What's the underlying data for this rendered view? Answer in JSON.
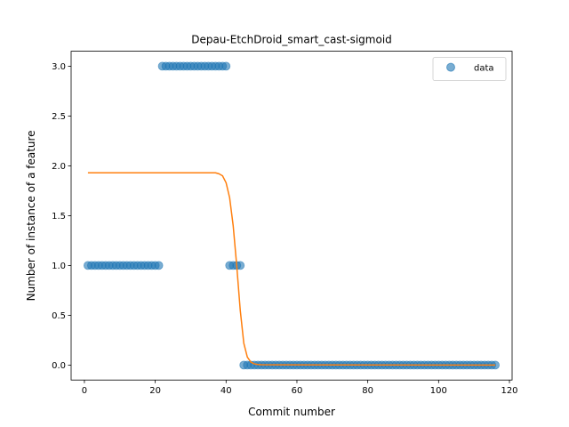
{
  "chart_data": {
    "type": "scatter",
    "title": "Depau-EtchDroid_smart_cast-sigmoid",
    "xlabel": "Commit number",
    "ylabel": "Number of instance of a feature",
    "xlim": [
      -3.75,
      120.75
    ],
    "ylim": [
      -0.15,
      3.15
    ],
    "xticks": [
      0,
      20,
      40,
      60,
      80,
      100,
      120
    ],
    "yticks": [
      0.0,
      0.5,
      1.0,
      1.5,
      2.0,
      2.5,
      3.0
    ],
    "xtick_labels": [
      "0",
      "20",
      "40",
      "60",
      "80",
      "100",
      "120"
    ],
    "ytick_labels": [
      "0.0",
      "0.5",
      "1.0",
      "1.5",
      "2.0",
      "2.5",
      "3.0"
    ],
    "legend": {
      "position": "top-right",
      "entries": [
        "data"
      ]
    },
    "grid": false,
    "colors": {
      "data": "#1f77b4",
      "fit": "#ff7f0e"
    },
    "series": [
      {
        "name": "data",
        "kind": "scatter",
        "points": [
          [
            1,
            1
          ],
          [
            2,
            1
          ],
          [
            3,
            1
          ],
          [
            4,
            1
          ],
          [
            5,
            1
          ],
          [
            6,
            1
          ],
          [
            7,
            1
          ],
          [
            8,
            1
          ],
          [
            9,
            1
          ],
          [
            10,
            1
          ],
          [
            11,
            1
          ],
          [
            12,
            1
          ],
          [
            13,
            1
          ],
          [
            14,
            1
          ],
          [
            15,
            1
          ],
          [
            16,
            1
          ],
          [
            17,
            1
          ],
          [
            18,
            1
          ],
          [
            19,
            1
          ],
          [
            20,
            1
          ],
          [
            21,
            1
          ],
          [
            22,
            3
          ],
          [
            23,
            3
          ],
          [
            24,
            3
          ],
          [
            25,
            3
          ],
          [
            26,
            3
          ],
          [
            27,
            3
          ],
          [
            28,
            3
          ],
          [
            29,
            3
          ],
          [
            30,
            3
          ],
          [
            31,
            3
          ],
          [
            32,
            3
          ],
          [
            33,
            3
          ],
          [
            34,
            3
          ],
          [
            35,
            3
          ],
          [
            36,
            3
          ],
          [
            37,
            3
          ],
          [
            38,
            3
          ],
          [
            39,
            3
          ],
          [
            40,
            3
          ],
          [
            41,
            1
          ],
          [
            42,
            1
          ],
          [
            43,
            1
          ],
          [
            44,
            1
          ],
          [
            45,
            0
          ],
          [
            46,
            0
          ],
          [
            47,
            0
          ],
          [
            48,
            0
          ],
          [
            49,
            0
          ],
          [
            50,
            0
          ],
          [
            51,
            0
          ],
          [
            52,
            0
          ],
          [
            53,
            0
          ],
          [
            54,
            0
          ],
          [
            55,
            0
          ],
          [
            56,
            0
          ],
          [
            57,
            0
          ],
          [
            58,
            0
          ],
          [
            59,
            0
          ],
          [
            60,
            0
          ],
          [
            61,
            0
          ],
          [
            62,
            0
          ],
          [
            63,
            0
          ],
          [
            64,
            0
          ],
          [
            65,
            0
          ],
          [
            66,
            0
          ],
          [
            67,
            0
          ],
          [
            68,
            0
          ],
          [
            69,
            0
          ],
          [
            70,
            0
          ],
          [
            71,
            0
          ],
          [
            72,
            0
          ],
          [
            73,
            0
          ],
          [
            74,
            0
          ],
          [
            75,
            0
          ],
          [
            76,
            0
          ],
          [
            77,
            0
          ],
          [
            78,
            0
          ],
          [
            79,
            0
          ],
          [
            80,
            0
          ],
          [
            81,
            0
          ],
          [
            82,
            0
          ],
          [
            83,
            0
          ],
          [
            84,
            0
          ],
          [
            85,
            0
          ],
          [
            86,
            0
          ],
          [
            87,
            0
          ],
          [
            88,
            0
          ],
          [
            89,
            0
          ],
          [
            90,
            0
          ],
          [
            91,
            0
          ],
          [
            92,
            0
          ],
          [
            93,
            0
          ],
          [
            94,
            0
          ],
          [
            95,
            0
          ],
          [
            96,
            0
          ],
          [
            97,
            0
          ],
          [
            98,
            0
          ],
          [
            99,
            0
          ],
          [
            100,
            0
          ],
          [
            101,
            0
          ],
          [
            102,
            0
          ],
          [
            103,
            0
          ],
          [
            104,
            0
          ],
          [
            105,
            0
          ],
          [
            106,
            0
          ],
          [
            107,
            0
          ],
          [
            108,
            0
          ],
          [
            109,
            0
          ],
          [
            110,
            0
          ],
          [
            111,
            0
          ],
          [
            112,
            0
          ],
          [
            113,
            0
          ],
          [
            114,
            0
          ],
          [
            115,
            0
          ],
          [
            116,
            0
          ]
        ]
      },
      {
        "kind": "line",
        "x": [
          1,
          30,
          36,
          37,
          38,
          39,
          40,
          41,
          42,
          43,
          44,
          45,
          46,
          47,
          48,
          49,
          50,
          55,
          116
        ],
        "y": [
          1.93,
          1.93,
          1.93,
          1.93,
          1.92,
          1.9,
          1.83,
          1.68,
          1.4,
          1.0,
          0.55,
          0.22,
          0.08,
          0.03,
          0.012,
          0.006,
          0.004,
          0.002,
          0.0
        ]
      }
    ]
  }
}
